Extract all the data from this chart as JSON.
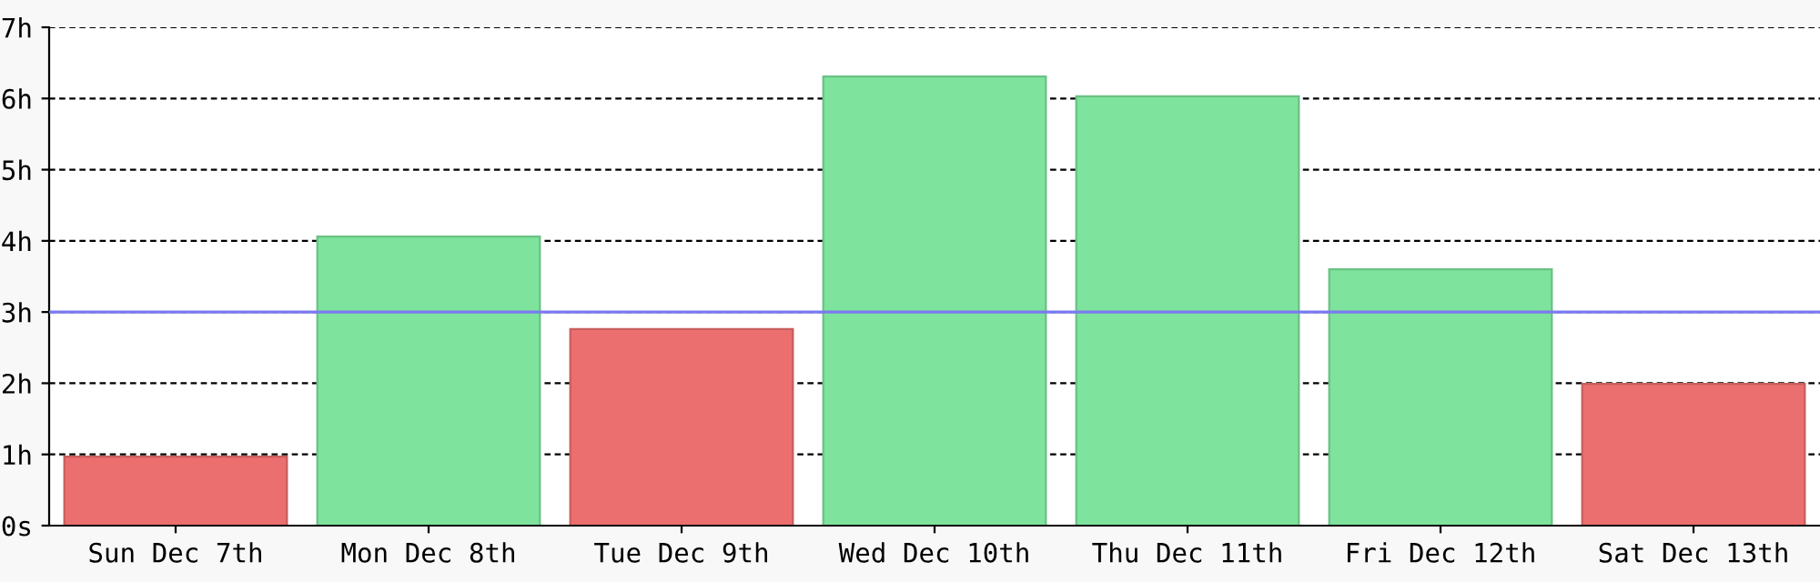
{
  "chart_data": {
    "type": "bar",
    "categories": [
      "Sun Dec 7th",
      "Mon Dec 8th",
      "Tue Dec 9th",
      "Wed Dec 10th",
      "Thu Dec 11th",
      "Fri Dec 12th",
      "Sat Dec 13th"
    ],
    "values": [
      0.97,
      4.06,
      2.76,
      6.31,
      6.03,
      3.6,
      1.99
    ],
    "colors": [
      "#eb6f6f",
      "#7ee39d",
      "#eb6f6f",
      "#7ee39d",
      "#7ee39d",
      "#7ee39d",
      "#eb6f6f"
    ],
    "ylim": [
      0,
      7
    ],
    "yticks": [
      {
        "value": 0,
        "label": "0s"
      },
      {
        "value": 1,
        "label": "1h"
      },
      {
        "value": 2,
        "label": "2h"
      },
      {
        "value": 3,
        "label": "3h"
      },
      {
        "value": 4,
        "label": "4h"
      },
      {
        "value": 5,
        "label": "5h"
      },
      {
        "value": 6,
        "label": "6h"
      },
      {
        "value": 7,
        "label": "7h"
      }
    ],
    "grid": "y",
    "ref_lines": [
      {
        "axis": "y",
        "value": 3,
        "color": "#7b7bf0",
        "line_style": "solid"
      }
    ]
  }
}
